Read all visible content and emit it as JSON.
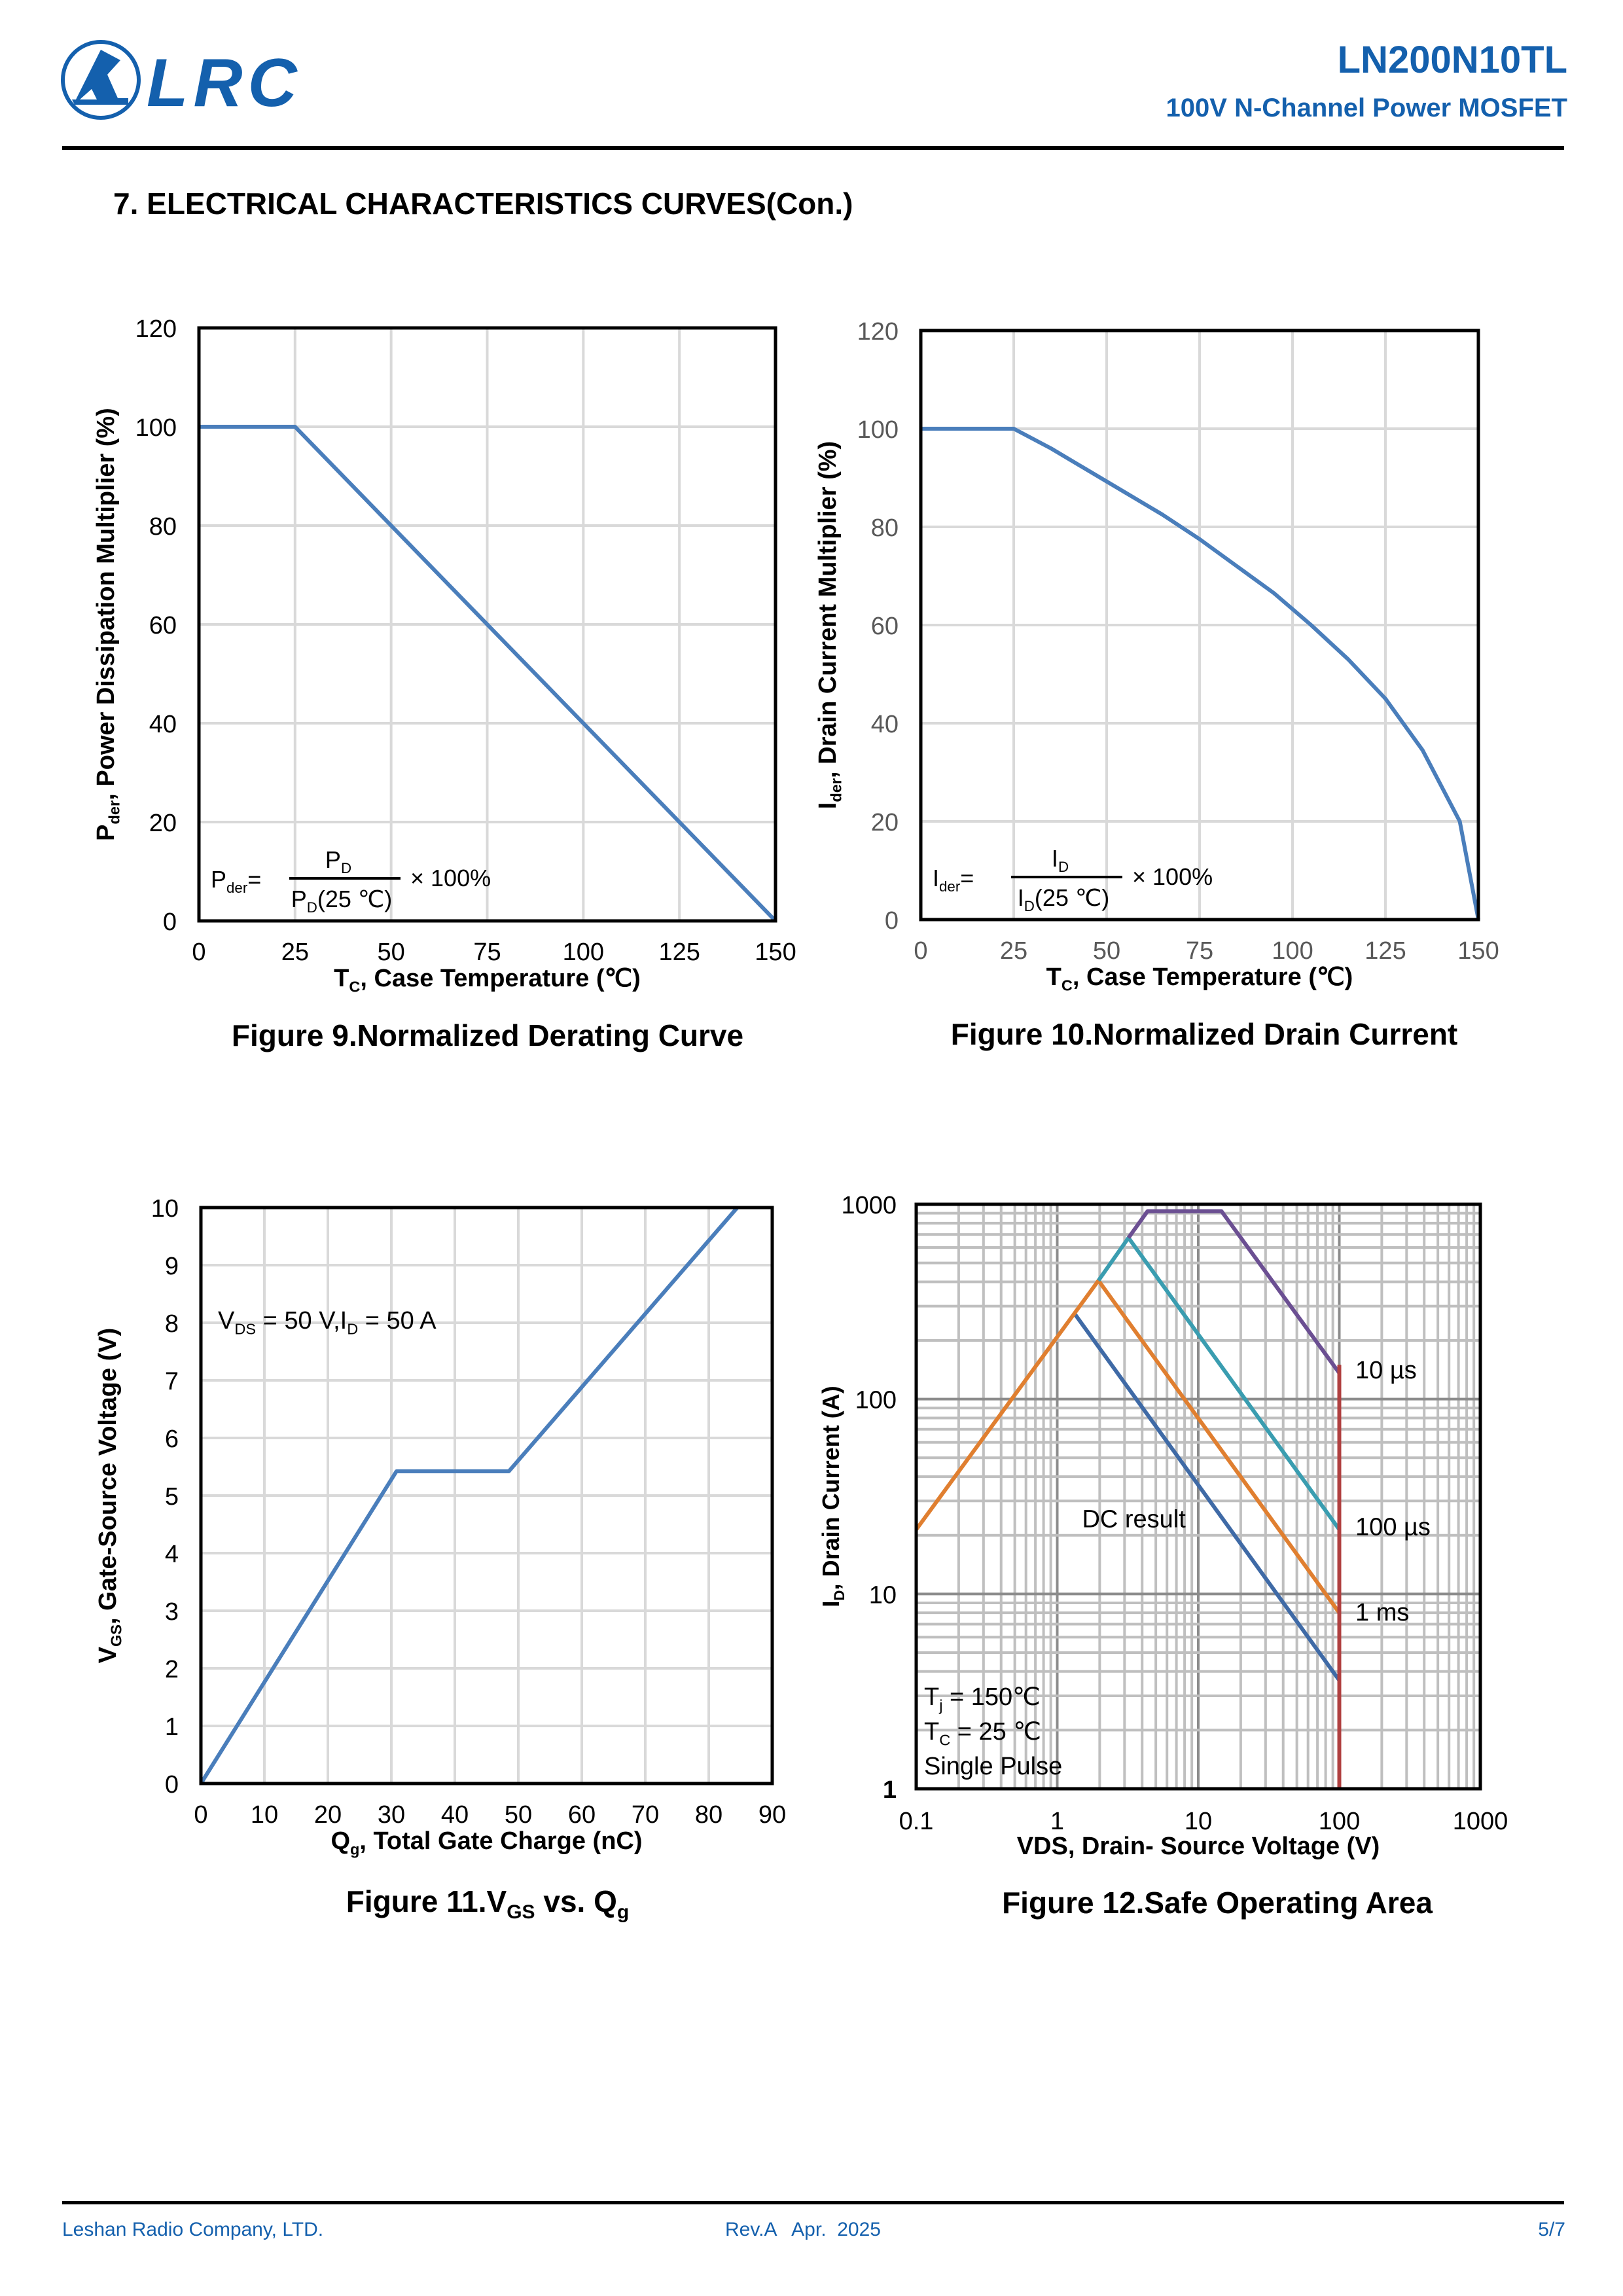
{
  "header": {
    "logo_text": "LRC",
    "part_number": "LN200N10TL",
    "part_description": "100V N-Channel Power MOSFET",
    "brand_color": "#1460ad"
  },
  "section_title": "7. ELECTRICAL CHARACTERISTICS CURVES(Con.)",
  "footer": {
    "company": "Leshan Radio Company, LTD.",
    "revision": "Rev.A   Apr.  2025",
    "page": "5/7"
  },
  "chart_data": [
    {
      "id": "fig9",
      "type": "line",
      "caption": "Figure 9.Normalized Derating Curve",
      "title": "",
      "xlabel_main": "T",
      "xlabel_sub": "C",
      "xlabel_rest": ", Case Temperature (℃)",
      "ylabel_main": "P",
      "ylabel_sub": "der",
      "ylabel_rest": ", Power Dissipation Multiplier (%)",
      "xlim": [
        0,
        150
      ],
      "ylim": [
        0,
        120
      ],
      "xticks": [
        0,
        25,
        50,
        75,
        100,
        125,
        150
      ],
      "yticks": [
        0,
        20,
        40,
        60,
        80,
        100,
        120
      ],
      "tick_color": "#000000",
      "grid": true,
      "series": [
        {
          "name": "Pder",
          "color": "#4a7ebb",
          "x": [
            0,
            25,
            150
          ],
          "y": [
            100,
            100,
            0
          ]
        }
      ],
      "formula": {
        "lhs": "P",
        "lhs_sub": "der",
        "lhs_eq": "=",
        "num": "P",
        "num_sub": "D",
        "den": "P",
        "den_sub": "D",
        "den_rest": "(25 ℃)",
        "factor": "× 100%"
      }
    },
    {
      "id": "fig10",
      "type": "line",
      "caption": "Figure 10.Normalized Drain Current",
      "title": "",
      "xlabel_main": "T",
      "xlabel_sub": "C",
      "xlabel_rest": ", Case Temperature (℃)",
      "ylabel_main": "I",
      "ylabel_sub": "der",
      "ylabel_rest": ", Drain Current Multiplier (%)",
      "xlim": [
        0,
        150
      ],
      "ylim": [
        0,
        120
      ],
      "xticks": [
        0,
        25,
        50,
        75,
        100,
        125,
        150
      ],
      "yticks": [
        0,
        20,
        40,
        60,
        80,
        100,
        120
      ],
      "tick_color": "#595959",
      "grid": true,
      "series": [
        {
          "name": "Ider",
          "color": "#4a7ebb",
          "x": [
            0,
            25,
            35,
            45,
            55,
            65,
            75,
            85,
            95,
            105,
            115,
            125,
            135,
            145,
            150
          ],
          "y": [
            100,
            100,
            96,
            91.5,
            87,
            82.5,
            77.5,
            72,
            66.5,
            60,
            53,
            45,
            34.5,
            20,
            0
          ]
        }
      ],
      "formula": {
        "lhs": "I",
        "lhs_sub": "der",
        "lhs_eq": "=",
        "num": "I",
        "num_sub": "D",
        "den": "I",
        "den_sub": "D",
        "den_rest": "(25 ℃)",
        "factor": "× 100%"
      }
    },
    {
      "id": "fig11",
      "type": "line",
      "caption_main": "Figure 11.V",
      "caption_sub1": "GS",
      "caption_mid": " vs. Q",
      "caption_sub2": "g",
      "title": "",
      "xlabel_main": "Q",
      "xlabel_sub": "g",
      "xlabel_rest": ", Total Gate Charge (nC)",
      "ylabel_main": "V",
      "ylabel_sub": "GS",
      "ylabel_rest": ", Gate-Source Voltage (V)",
      "xlim": [
        0,
        90
      ],
      "ylim": [
        0,
        10
      ],
      "xticks": [
        0,
        10,
        20,
        30,
        40,
        50,
        60,
        70,
        80,
        90
      ],
      "yticks": [
        0,
        1,
        2,
        3,
        4,
        5,
        6,
        7,
        8,
        9,
        10
      ],
      "tick_color": "#000000",
      "grid": true,
      "series": [
        {
          "name": "VGS",
          "color": "#4a7ebb",
          "x": [
            0,
            30.8,
            48.5,
            84.5
          ],
          "y": [
            0,
            5.42,
            5.42,
            10
          ]
        }
      ],
      "annotation": {
        "a": "V",
        "a_sub": "DS",
        "b": " = 50 V,I",
        "b_sub": "D",
        "c": " = 50 A"
      }
    },
    {
      "id": "fig12",
      "type": "line",
      "scale": "log-log",
      "caption": "Figure 12.Safe Operating Area",
      "title": "",
      "xlabel": "VDS, Drain- Source Voltage (V)",
      "ylabel_main": "I",
      "ylabel_sub": "D",
      "ylabel_rest": ", Drain  Current (A)",
      "xlim": [
        0.1,
        1000
      ],
      "ylim": [
        1,
        1000
      ],
      "xticks": [
        0.1,
        1,
        10,
        100,
        1000
      ],
      "xtick_labels": [
        "0.1",
        "1",
        "10",
        "100",
        "1000"
      ],
      "yticks": [
        1,
        10,
        100,
        1000
      ],
      "ytick_labels": [
        "1",
        "10",
        "100",
        "1000"
      ],
      "grid": true,
      "series": [
        {
          "name": "DC result",
          "color": "#3f6aa6",
          "x": [
            1.33,
            100
          ],
          "y": [
            274,
            3.6
          ]
        },
        {
          "name": "1 ms",
          "color": "#e07f30",
          "x": [
            0.1,
            1.96,
            100
          ],
          "y": [
            21.4,
            406,
            8.0
          ]
        },
        {
          "name": "100 µs",
          "color": "#3a9db0",
          "x": [
            1.96,
            3.2,
            100
          ],
          "y": [
            406,
            673,
            21.4
          ]
        },
        {
          "name": "10 µs",
          "color": "#6b4f92",
          "x": [
            3.2,
            4.37,
            14.6,
            100
          ],
          "y": [
            673,
            922,
            922,
            136
          ]
        },
        {
          "name": "VDS limit",
          "color": "#b04040",
          "x": [
            100,
            100
          ],
          "y": [
            150,
            1
          ]
        }
      ],
      "labels": [
        {
          "text": "10 µs",
          "x": 130,
          "y": 128
        },
        {
          "text": "100 µs",
          "x": 130,
          "y": 20
        },
        {
          "text": "1 ms",
          "x": 130,
          "y": 7.3
        },
        {
          "text": "DC result",
          "x": 1.5,
          "y": 22
        }
      ],
      "conditions": {
        "tj": "T",
        "tj_sub": "j",
        "tj_rest": "  = 150℃",
        "tc": "T",
        "tc_sub": "C",
        "tc_rest": " = 25 ℃",
        "pulse": "Single Pulse"
      }
    }
  ]
}
